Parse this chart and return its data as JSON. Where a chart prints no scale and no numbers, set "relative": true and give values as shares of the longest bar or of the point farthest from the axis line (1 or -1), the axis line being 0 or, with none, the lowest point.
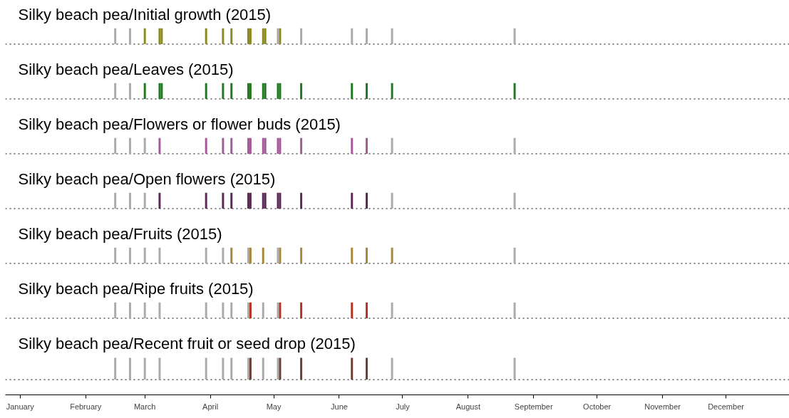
{
  "chart_data": [
    {
      "type": "bar",
      "relative": true,
      "title": "Silky beach pea/Initial growth (2015)",
      "tick_labels": false,
      "xlim": [
        "2014-12-25",
        "2015-12-31"
      ],
      "series": [
        {
          "color": "#aaaaaa",
          "x": [
            "2015-02-15",
            "2015-02-22",
            "2015-05-03",
            "2015-05-14",
            "2015-06-07",
            "2015-06-14",
            "2015-06-26",
            "2015-08-23"
          ],
          "values": [
            1,
            1,
            1,
            1,
            1,
            1,
            1,
            1
          ]
        },
        {
          "color": "#8a8a1e",
          "x": [
            "2015-03-01",
            "2015-03-08",
            "2015-03-09",
            "2015-03-30",
            "2015-04-07",
            "2015-04-11",
            "2015-04-19",
            "2015-04-20",
            "2015-04-26",
            "2015-04-27",
            "2015-05-04"
          ],
          "values": [
            1,
            1,
            1,
            1,
            1,
            1,
            1,
            1,
            1,
            1,
            1
          ]
        }
      ]
    },
    {
      "type": "bar",
      "relative": true,
      "title": "Silky beach pea/Leaves (2015)",
      "tick_labels": false,
      "xlim": [
        "2014-12-25",
        "2015-12-31"
      ],
      "series": [
        {
          "color": "#aaaaaa",
          "x": [
            "2015-02-15",
            "2015-02-22"
          ],
          "values": [
            1,
            1
          ]
        },
        {
          "color": "#217a21",
          "x": [
            "2015-03-01",
            "2015-03-08",
            "2015-03-09",
            "2015-03-30",
            "2015-04-07",
            "2015-04-11",
            "2015-04-19",
            "2015-04-20",
            "2015-04-26",
            "2015-04-27",
            "2015-05-03",
            "2015-05-04",
            "2015-05-14",
            "2015-06-07",
            "2015-06-14",
            "2015-06-26",
            "2015-08-23"
          ],
          "values": [
            1,
            1,
            1,
            1,
            1,
            1,
            1,
            1,
            1,
            1,
            1,
            1,
            1,
            1,
            1,
            1,
            1
          ]
        }
      ]
    },
    {
      "type": "bar",
      "relative": true,
      "title": "Silky beach pea/Flowers or flower buds (2015)",
      "tick_labels": false,
      "xlim": [
        "2014-12-25",
        "2015-12-31"
      ],
      "series": [
        {
          "color": "#aaaaaa",
          "x": [
            "2015-02-15",
            "2015-02-22",
            "2015-03-01",
            "2015-06-26",
            "2015-08-23"
          ],
          "values": [
            1,
            1,
            1,
            1,
            1
          ]
        },
        {
          "color": "#a55a98",
          "x": [
            "2015-03-08",
            "2015-03-30",
            "2015-04-07",
            "2015-04-11",
            "2015-04-19",
            "2015-04-20",
            "2015-04-26",
            "2015-04-27",
            "2015-05-03",
            "2015-05-04",
            "2015-05-14",
            "2015-06-07",
            "2015-06-14"
          ],
          "values": [
            1,
            1,
            1,
            1,
            1,
            1,
            1,
            1,
            1,
            1,
            1,
            1,
            1
          ]
        }
      ]
    },
    {
      "type": "bar",
      "relative": true,
      "title": "Silky beach pea/Open flowers (2015)",
      "tick_labels": false,
      "xlim": [
        "2014-12-25",
        "2015-12-31"
      ],
      "series": [
        {
          "color": "#aaaaaa",
          "x": [
            "2015-02-15",
            "2015-02-22",
            "2015-03-01",
            "2015-06-26",
            "2015-08-23"
          ],
          "values": [
            1,
            1,
            1,
            1,
            1
          ]
        },
        {
          "color": "#5a2a55",
          "x": [
            "2015-03-08",
            "2015-03-30",
            "2015-04-07",
            "2015-04-11",
            "2015-04-19",
            "2015-04-20",
            "2015-04-26",
            "2015-04-27",
            "2015-05-03",
            "2015-05-04",
            "2015-05-14",
            "2015-06-07",
            "2015-06-14"
          ],
          "values": [
            1,
            1,
            1,
            1,
            1,
            1,
            1,
            1,
            1,
            1,
            1,
            1,
            1
          ]
        }
      ]
    },
    {
      "type": "bar",
      "relative": true,
      "title": "Silky beach pea/Fruits (2015)",
      "tick_labels": false,
      "xlim": [
        "2014-12-25",
        "2015-12-31"
      ],
      "series": [
        {
          "color": "#aaaaaa",
          "x": [
            "2015-02-15",
            "2015-02-22",
            "2015-03-01",
            "2015-03-08",
            "2015-03-30",
            "2015-04-07",
            "2015-04-19",
            "2015-05-03",
            "2015-08-23"
          ],
          "values": [
            1,
            1,
            1,
            1,
            1,
            1,
            1,
            1,
            1
          ]
        },
        {
          "color": "#a8873a",
          "x": [
            "2015-04-11",
            "2015-04-20",
            "2015-04-26",
            "2015-05-04",
            "2015-05-14",
            "2015-06-07",
            "2015-06-14",
            "2015-06-26"
          ],
          "values": [
            1,
            1,
            1,
            1,
            1,
            1,
            1,
            1
          ]
        }
      ]
    },
    {
      "type": "bar",
      "relative": true,
      "title": "Silky beach pea/Ripe fruits (2015)",
      "tick_labels": false,
      "xlim": [
        "2014-12-25",
        "2015-12-31"
      ],
      "series": [
        {
          "color": "#aaaaaa",
          "x": [
            "2015-02-15",
            "2015-02-22",
            "2015-03-01",
            "2015-03-08",
            "2015-03-30",
            "2015-04-07",
            "2015-04-11",
            "2015-04-19",
            "2015-04-26",
            "2015-05-03",
            "2015-06-26",
            "2015-08-23"
          ],
          "values": [
            1,
            1,
            1,
            1,
            1,
            1,
            1,
            1,
            1,
            1,
            1,
            1
          ]
        },
        {
          "color": "#b83220",
          "x": [
            "2015-04-20",
            "2015-05-04",
            "2015-05-14",
            "2015-06-07",
            "2015-06-14"
          ],
          "values": [
            1,
            1,
            1,
            1,
            1
          ]
        }
      ]
    },
    {
      "type": "bar",
      "relative": true,
      "title": "Silky beach pea/Recent fruit or seed drop (2015)",
      "tick_labels": "x",
      "xlim": [
        "2014-12-25",
        "2015-12-31"
      ],
      "xticks": [
        {
          "value": "2015-01-01",
          "label": "January"
        },
        {
          "value": "2015-02-01",
          "label": "February"
        },
        {
          "value": "2015-03-01",
          "label": "March"
        },
        {
          "value": "2015-04-01",
          "label": "April"
        },
        {
          "value": "2015-05-01",
          "label": "May"
        },
        {
          "value": "2015-06-01",
          "label": "June"
        },
        {
          "value": "2015-07-01",
          "label": "July"
        },
        {
          "value": "2015-08-01",
          "label": "August"
        },
        {
          "value": "2015-09-01",
          "label": "September"
        },
        {
          "value": "2015-10-01",
          "label": "October"
        },
        {
          "value": "2015-11-01",
          "label": "November"
        },
        {
          "value": "2015-12-01",
          "label": "December"
        }
      ],
      "series": [
        {
          "color": "#aaaaaa",
          "x": [
            "2015-02-15",
            "2015-02-22",
            "2015-03-01",
            "2015-03-08",
            "2015-03-30",
            "2015-04-07",
            "2015-04-11",
            "2015-04-19",
            "2015-04-26",
            "2015-05-03",
            "2015-06-26",
            "2015-08-23"
          ],
          "values": [
            1,
            1,
            1,
            1,
            1,
            1,
            1,
            1,
            1,
            1,
            1,
            1
          ]
        },
        {
          "color": "#6b3f35",
          "x": [
            "2015-04-20",
            "2015-05-04",
            "2015-05-14",
            "2015-06-07",
            "2015-06-14"
          ],
          "values": [
            1,
            1,
            1,
            1,
            1
          ]
        }
      ]
    }
  ]
}
